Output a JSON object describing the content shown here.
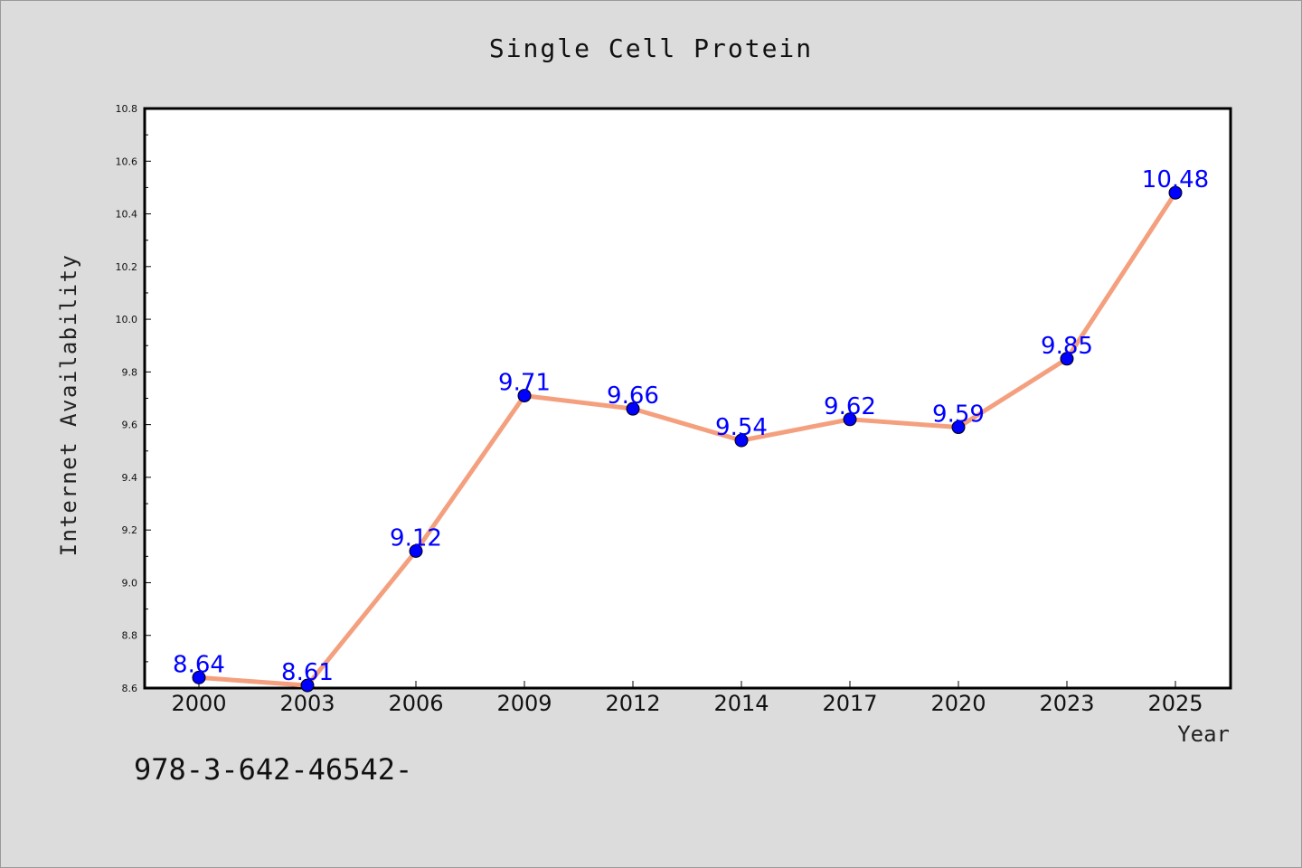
{
  "chart_data": {
    "type": "line",
    "title": "Single Cell Protein",
    "xlabel": "Year",
    "ylabel": "Internet Availability",
    "categories": [
      "2000",
      "2003",
      "2006",
      "2009",
      "2012",
      "2014",
      "2017",
      "2020",
      "2023",
      "2025"
    ],
    "values": [
      8.64,
      8.61,
      9.12,
      9.71,
      9.66,
      9.54,
      9.62,
      9.59,
      9.85,
      10.48
    ],
    "data_labels": [
      "8.64",
      "8.61",
      "9.12",
      "9.71",
      "9.66",
      "9.54",
      "9.62",
      "9.59",
      "9.85",
      "10.48"
    ],
    "ylim": [
      8.6,
      10.8
    ],
    "yticks": [
      "8.6",
      "8.8",
      "9.0",
      "9.2",
      "9.4",
      "9.6",
      "9.8",
      "10.0",
      "10.2",
      "10.4",
      "10.6",
      "10.8"
    ],
    "grid": false,
    "legend": "none",
    "line_color": "#f4a07e",
    "marker_color": "#0000ff",
    "label_color": "#0000ff"
  },
  "footnote": "978-3-642-46542-"
}
